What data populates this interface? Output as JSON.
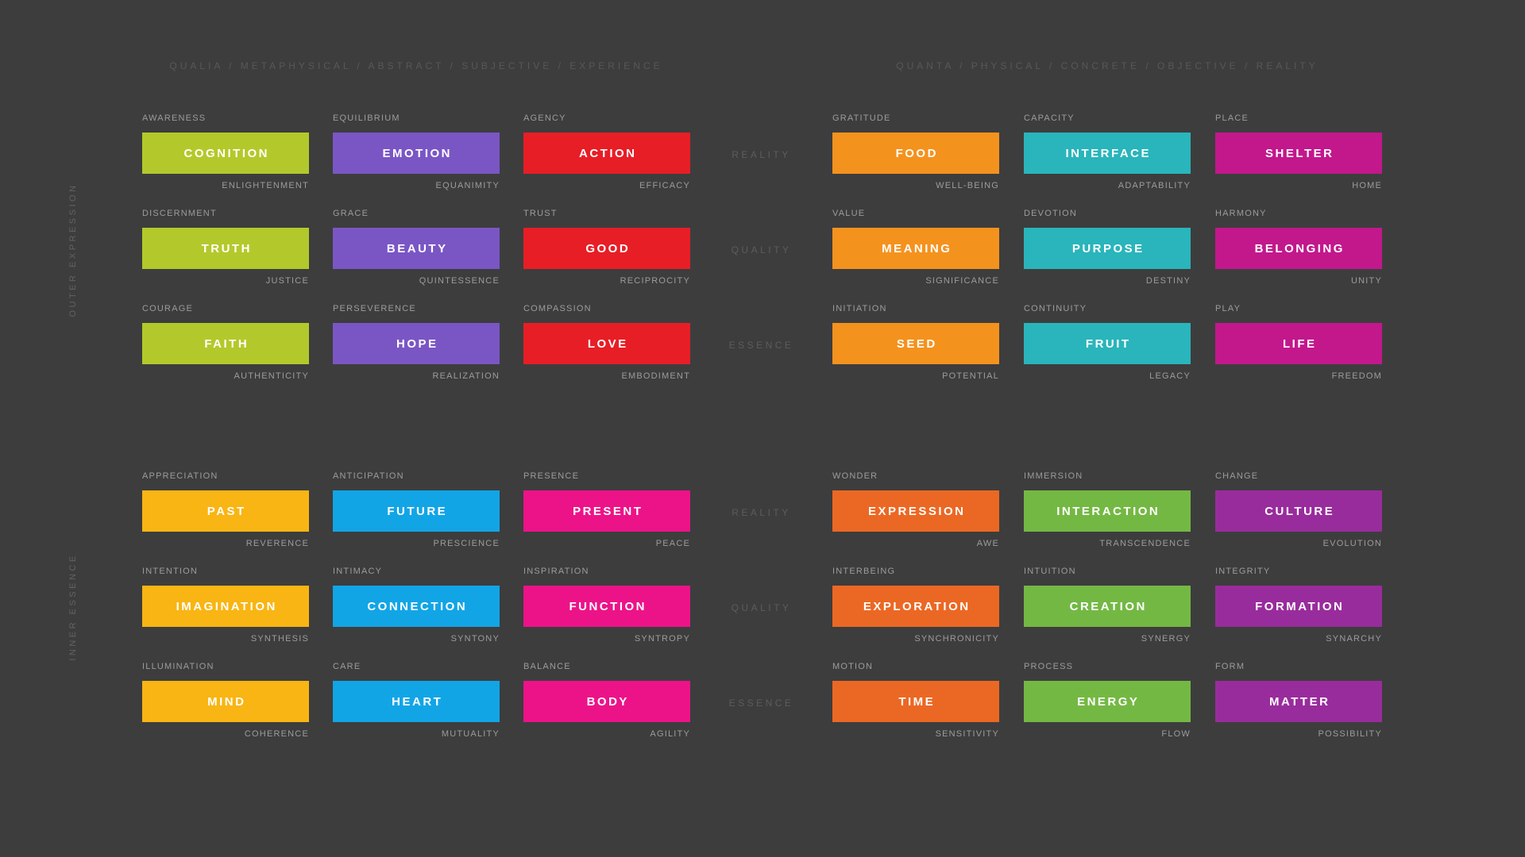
{
  "theme": {
    "background": "#3d3d3d",
    "block_text": "#ffffff",
    "cell_label": "#9c9c9c",
    "header_text": "#585858",
    "axis_text": "#5c5c5c",
    "side_text": "#636363"
  },
  "headers": {
    "left": "QUALIA / METAPHYSICAL / ABSTRACT / SUBJECTIVE / EXPERIENCE",
    "right": "QUANTA / PHYSICAL / CONCRETE / OBJECTIVE / REALITY"
  },
  "side_labels": {
    "top": "OUTER EXPRESSION",
    "bottom": "INNER ESSENCE"
  },
  "sections": [
    {
      "id": "outer-expression",
      "rows": [
        {
          "axis": "REALITY",
          "cells": [
            {
              "top": "AWARENESS",
              "main": "COGNITION",
              "bottom": "ENLIGHTENMENT",
              "color": "#b3c92b"
            },
            {
              "top": "EQUILIBRIUM",
              "main": "EMOTION",
              "bottom": "EQUANIMITY",
              "color": "#7a56c5"
            },
            {
              "top": "AGENCY",
              "main": "ACTION",
              "bottom": "EFFICACY",
              "color": "#e71e26"
            },
            {
              "top": "GRATITUDE",
              "main": "FOOD",
              "bottom": "WELL-BEING",
              "color": "#f4921e"
            },
            {
              "top": "CAPACITY",
              "main": "INTERFACE",
              "bottom": "ADAPTABILITY",
              "color": "#29b5bb"
            },
            {
              "top": "PLACE",
              "main": "SHELTER",
              "bottom": "HOME",
              "color": "#c2188c"
            }
          ]
        },
        {
          "axis": "QUALITY",
          "cells": [
            {
              "top": "DISCERNMENT",
              "main": "TRUTH",
              "bottom": "JUSTICE",
              "color": "#b3c92b"
            },
            {
              "top": "GRACE",
              "main": "BEAUTY",
              "bottom": "QUINTESSENCE",
              "color": "#7a56c5"
            },
            {
              "top": "TRUST",
              "main": "GOOD",
              "bottom": "RECIPROCITY",
              "color": "#e71e26"
            },
            {
              "top": "VALUE",
              "main": "MEANING",
              "bottom": "SIGNIFICANCE",
              "color": "#f4921e"
            },
            {
              "top": "DEVOTION",
              "main": "PURPOSE",
              "bottom": "DESTINY",
              "color": "#29b5bb"
            },
            {
              "top": "HARMONY",
              "main": "BELONGING",
              "bottom": "UNITY",
              "color": "#c2188c"
            }
          ]
        },
        {
          "axis": "ESSENCE",
          "cells": [
            {
              "top": "COURAGE",
              "main": "FAITH",
              "bottom": "AUTHENTICITY",
              "color": "#b3c92b"
            },
            {
              "top": "PERSEVERENCE",
              "main": "HOPE",
              "bottom": "REALIZATION",
              "color": "#7a56c5"
            },
            {
              "top": "COMPASSION",
              "main": "LOVE",
              "bottom": "EMBODIMENT",
              "color": "#e71e26"
            },
            {
              "top": "INITIATION",
              "main": "SEED",
              "bottom": "POTENTIAL",
              "color": "#f4921e"
            },
            {
              "top": "CONTINUITY",
              "main": "FRUIT",
              "bottom": "LEGACY",
              "color": "#29b5bb"
            },
            {
              "top": "PLAY",
              "main": "LIFE",
              "bottom": "FREEDOM",
              "color": "#c2188c"
            }
          ]
        }
      ]
    },
    {
      "id": "inner-essence",
      "rows": [
        {
          "axis": "REALITY",
          "cells": [
            {
              "top": "APPRECIATION",
              "main": "PAST",
              "bottom": "REVERENCE",
              "color": "#f8b513"
            },
            {
              "top": "ANTICIPATION",
              "main": "FUTURE",
              "bottom": "PRESCIENCE",
              "color": "#12a5e6"
            },
            {
              "top": "PRESENCE",
              "main": "PRESENT",
              "bottom": "PEACE",
              "color": "#ec1389"
            },
            {
              "top": "WONDER",
              "main": "EXPRESSION",
              "bottom": "AWE",
              "color": "#eb6824"
            },
            {
              "top": "IMMERSION",
              "main": "INTERACTION",
              "bottom": "TRANSCENDENCE",
              "color": "#74b844"
            },
            {
              "top": "CHANGE",
              "main": "CULTURE",
              "bottom": "EVOLUTION",
              "color": "#992c9c"
            }
          ]
        },
        {
          "axis": "QUALITY",
          "cells": [
            {
              "top": "INTENTION",
              "main": "IMAGINATION",
              "bottom": "SYNTHESIS",
              "color": "#f8b513"
            },
            {
              "top": "INTIMACY",
              "main": "CONNECTION",
              "bottom": "SYNTONY",
              "color": "#12a5e6"
            },
            {
              "top": "INSPIRATION",
              "main": "FUNCTION",
              "bottom": "SYNTROPY",
              "color": "#ec1389"
            },
            {
              "top": "INTERBEING",
              "main": "EXPLORATION",
              "bottom": "SYNCHRONICITY",
              "color": "#eb6824"
            },
            {
              "top": "INTUITION",
              "main": "CREATION",
              "bottom": "SYNERGY",
              "color": "#74b844"
            },
            {
              "top": "INTEGRITY",
              "main": "FORMATION",
              "bottom": "SYNARCHY",
              "color": "#992c9c"
            }
          ]
        },
        {
          "axis": "ESSENCE",
          "cells": [
            {
              "top": "ILLUMINATION",
              "main": "MIND",
              "bottom": "COHERENCE",
              "color": "#f8b513"
            },
            {
              "top": "CARE",
              "main": "HEART",
              "bottom": "MUTUALITY",
              "color": "#12a5e6"
            },
            {
              "top": "BALANCE",
              "main": "BODY",
              "bottom": "AGILITY",
              "color": "#ec1389"
            },
            {
              "top": "MOTION",
              "main": "TIME",
              "bottom": "SENSITIVITY",
              "color": "#eb6824"
            },
            {
              "top": "PROCESS",
              "main": "ENERGY",
              "bottom": "FLOW",
              "color": "#74b844"
            },
            {
              "top": "FORM",
              "main": "MATTER",
              "bottom": "POSSIBILITY",
              "color": "#992c9c"
            }
          ]
        }
      ]
    }
  ]
}
